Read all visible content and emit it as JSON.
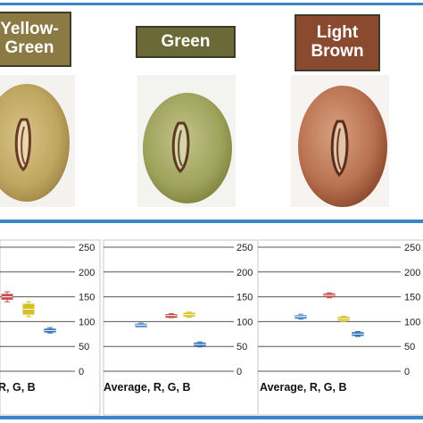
{
  "labels": [
    {
      "line1": "Yellow-",
      "line2": "Green",
      "color": "#8b7a43"
    },
    {
      "line1": "Green",
      "line2": "",
      "color": "#6b6a36"
    },
    {
      "line1": "Light",
      "line2": "Brown",
      "color": "#8a4a2f"
    }
  ],
  "colors": {
    "frame_blue": "#3b86c8",
    "series_R": "#c0504d",
    "series_G": "#d4c025",
    "series_B": "#2f6fb5",
    "series_avg": "#4a86c5"
  },
  "chart_data": [
    {
      "type": "box",
      "xlabel": "R, G, B",
      "yticks": [
        0,
        50,
        100,
        150,
        200,
        250
      ],
      "ylim": [
        0,
        250
      ],
      "grid": true,
      "series": [
        {
          "name": "R",
          "median": 150,
          "q1": 145,
          "q3": 155,
          "min": 140,
          "max": 160
        },
        {
          "name": "G",
          "median": 125,
          "q1": 115,
          "q3": 135,
          "min": 110,
          "max": 140
        },
        {
          "name": "B",
          "median": 82,
          "q1": 79,
          "q3": 85,
          "min": 77,
          "max": 88
        }
      ]
    },
    {
      "type": "box",
      "xlabel": "Average,  R, G, B",
      "yticks": [
        0,
        50,
        100,
        150,
        200,
        250
      ],
      "ylim": [
        0,
        250
      ],
      "grid": true,
      "series": [
        {
          "name": "Average",
          "median": 93,
          "q1": 91,
          "q3": 95,
          "min": 90,
          "max": 97
        },
        {
          "name": "R",
          "median": 112,
          "q1": 110,
          "q3": 114,
          "min": 108,
          "max": 116
        },
        {
          "name": "G",
          "median": 114,
          "q1": 111,
          "q3": 117,
          "min": 109,
          "max": 119
        },
        {
          "name": "B",
          "median": 54,
          "q1": 51,
          "q3": 57,
          "min": 49,
          "max": 59
        }
      ]
    },
    {
      "type": "box",
      "xlabel": "Average,  R, G, B",
      "yticks": [
        0,
        50,
        100,
        150,
        200,
        250
      ],
      "ylim": [
        0,
        250
      ],
      "grid": true,
      "series": [
        {
          "name": "Average",
          "median": 110,
          "q1": 109,
          "q3": 112,
          "min": 105,
          "max": 115
        },
        {
          "name": "R",
          "median": 153,
          "q1": 150,
          "q3": 156,
          "min": 148,
          "max": 158
        },
        {
          "name": "G",
          "median": 106,
          "q1": 103,
          "q3": 109,
          "min": 100,
          "max": 111
        },
        {
          "name": "B",
          "median": 75,
          "q1": 72,
          "q3": 78,
          "min": 70,
          "max": 80
        }
      ]
    }
  ]
}
